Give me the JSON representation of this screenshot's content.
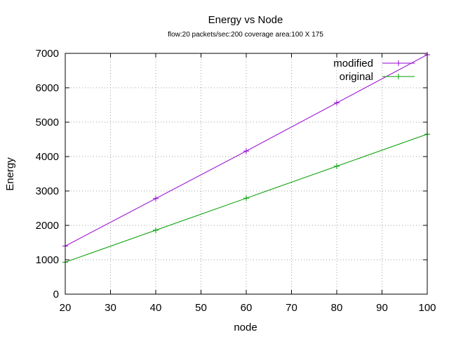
{
  "chart_data": {
    "type": "line",
    "title": "Energy vs Node",
    "subtitle": "flow:20  packets/sec:200  coverage area:100 X 175",
    "xlabel": "node",
    "ylabel": "Energy",
    "xlim": [
      20,
      100
    ],
    "ylim": [
      0,
      7000
    ],
    "xticks": [
      20,
      30,
      40,
      50,
      60,
      70,
      80,
      90,
      100
    ],
    "yticks": [
      0,
      1000,
      2000,
      3000,
      4000,
      5000,
      6000,
      7000
    ],
    "grid": true,
    "legend_position": "top-right",
    "x": [
      20,
      40,
      60,
      80,
      100
    ],
    "series": [
      {
        "name": "modified",
        "color": "#9400d3",
        "marker": "plus",
        "values": [
          1400,
          2780,
          4160,
          5560,
          6960
        ]
      },
      {
        "name": "original",
        "color": "#009e00",
        "marker": "plus",
        "values": [
          930,
          1860,
          2790,
          3720,
          4650
        ]
      }
    ]
  }
}
